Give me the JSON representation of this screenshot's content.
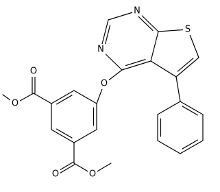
{
  "atoms": [
    "N",
    "N",
    "S",
    "O",
    "O",
    "O",
    "O",
    "O"
  ]
}
